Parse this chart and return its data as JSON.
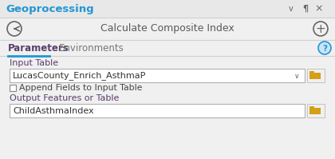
{
  "bg_color": "#e8e8e8",
  "panel_bg": "#f0f0f0",
  "title_bar_text": "Geoprocessing",
  "title_bar_color": "#2196d3",
  "title_bar_bg": "#e8e8e8",
  "tool_title": "Calculate Composite Index",
  "tool_title_color": "#5a5a5a",
  "tab1": "Parameters",
  "tab2": "Environments",
  "tab_color": "#5a3e6b",
  "tab_active_underline": "#2196d3",
  "label1": "Input Table",
  "label_color": "#5a3e6b",
  "input1_value": "LucasCounty_Enrich_AsthmaP",
  "input1_text_color": "#333333",
  "checkbox_label": "Append Fields to Input Table",
  "checkbox_color": "#444444",
  "label2": "Output Features or Table",
  "input2_value": "ChildAsthmaIndex",
  "input2_text_color": "#333333",
  "folder_color": "#d4a017",
  "border_color": "#b0b0b0",
  "help_circle_color": "#2196d3",
  "help_bg_color": "#cce4f7",
  "separator_color": "#d0d0d0",
  "content_bg": "#f0f0f0",
  "input_bg": "#ffffff",
  "icon_color": "#666666"
}
